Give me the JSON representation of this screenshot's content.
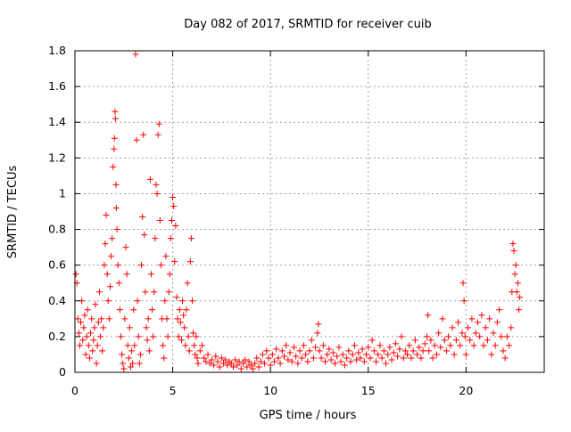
{
  "chart_data": {
    "type": "scatter",
    "title": "Day 082 of 2017, SRMTID for receiver cuib",
    "xlabel": "GPS time / hours",
    "ylabel": "SRMTID / TECUs",
    "xlim": [
      0,
      24
    ],
    "ylim": [
      0,
      1.8
    ],
    "x_ticks": [
      0,
      5,
      10,
      15,
      20
    ],
    "x_tick_labels": [
      "0",
      "5",
      "10",
      "15",
      "20"
    ],
    "y_ticks": [
      0,
      0.2,
      0.4,
      0.6,
      0.8,
      1.0,
      1.2,
      1.4,
      1.6,
      1.8
    ],
    "y_tick_labels": [
      "0",
      "0.2",
      "0.4",
      "0.6",
      "0.8",
      "1",
      "1.2",
      "1.4",
      "1.6",
      "1.8"
    ],
    "grid": true,
    "marker": "+",
    "series": [
      {
        "name": "SRMTID",
        "color": "#ff0000",
        "points": [
          [
            0.05,
            0.55
          ],
          [
            0.1,
            0.5
          ],
          [
            0.15,
            0.3
          ],
          [
            0.2,
            0.22
          ],
          [
            0.25,
            0.15
          ],
          [
            0.3,
            0.28
          ],
          [
            0.35,
            0.4
          ],
          [
            0.4,
            0.18
          ],
          [
            0.45,
            0.25
          ],
          [
            0.5,
            0.32
          ],
          [
            0.55,
            0.1
          ],
          [
            0.6,
            0.2
          ],
          [
            0.65,
            0.35
          ],
          [
            0.7,
            0.15
          ],
          [
            0.75,
            0.08
          ],
          [
            0.8,
            0.22
          ],
          [
            0.85,
            0.3
          ],
          [
            0.9,
            0.12
          ],
          [
            0.95,
            0.18
          ],
          [
            1.0,
            0.25
          ],
          [
            1.05,
            0.38
          ],
          [
            1.1,
            0.05
          ],
          [
            1.15,
            0.15
          ],
          [
            1.2,
            0.28
          ],
          [
            1.25,
            0.45
          ],
          [
            1.3,
            0.2
          ],
          [
            1.35,
            0.3
          ],
          [
            1.4,
            0.12
          ],
          [
            1.45,
            0.25
          ],
          [
            1.5,
            0.6
          ],
          [
            1.55,
            0.72
          ],
          [
            1.6,
            0.88
          ],
          [
            1.65,
            0.55
          ],
          [
            1.7,
            0.4
          ],
          [
            1.75,
            0.3
          ],
          [
            1.8,
            0.48
          ],
          [
            1.85,
            0.65
          ],
          [
            1.9,
            0.75
          ],
          [
            1.95,
            1.15
          ],
          [
            2.0,
            1.25
          ],
          [
            2.02,
            1.31
          ],
          [
            2.05,
            1.46
          ],
          [
            2.07,
            1.42
          ],
          [
            2.1,
            1.05
          ],
          [
            2.12,
            0.92
          ],
          [
            2.15,
            0.8
          ],
          [
            2.2,
            0.6
          ],
          [
            2.25,
            0.5
          ],
          [
            2.3,
            0.35
          ],
          [
            2.35,
            0.2
          ],
          [
            2.4,
            0.1
          ],
          [
            2.45,
            0.05
          ],
          [
            2.5,
            0.02
          ],
          [
            2.55,
            0.3
          ],
          [
            2.6,
            0.7
          ],
          [
            2.65,
            0.55
          ],
          [
            2.7,
            0.15
          ],
          [
            2.75,
            0.08
          ],
          [
            2.8,
            0.25
          ],
          [
            2.85,
            0.03
          ],
          [
            2.9,
            0.12
          ],
          [
            2.95,
            0.05
          ],
          [
            3.0,
            0.35
          ],
          [
            3.05,
            0.15
          ],
          [
            3.1,
            1.78
          ],
          [
            3.15,
            1.3
          ],
          [
            3.2,
            0.4
          ],
          [
            3.25,
            0.2
          ],
          [
            3.3,
            0.05
          ],
          [
            3.35,
            0.1
          ],
          [
            3.4,
            0.6
          ],
          [
            3.45,
            0.87
          ],
          [
            3.5,
            1.33
          ],
          [
            3.55,
            0.77
          ],
          [
            3.6,
            0.45
          ],
          [
            3.65,
            0.25
          ],
          [
            3.7,
            0.18
          ],
          [
            3.75,
            0.3
          ],
          [
            3.8,
            0.12
          ],
          [
            3.85,
            1.08
          ],
          [
            3.9,
            0.55
          ],
          [
            3.95,
            0.35
          ],
          [
            4.0,
            0.2
          ],
          [
            4.05,
            0.45
          ],
          [
            4.1,
            0.75
          ],
          [
            4.15,
            1.05
          ],
          [
            4.2,
            1.0
          ],
          [
            4.25,
            1.33
          ],
          [
            4.3,
            1.39
          ],
          [
            4.35,
            0.85
          ],
          [
            4.4,
            0.6
          ],
          [
            4.45,
            0.3
          ],
          [
            4.5,
            0.15
          ],
          [
            4.55,
            0.08
          ],
          [
            4.6,
            0.4
          ],
          [
            4.65,
            0.65
          ],
          [
            4.7,
            0.3
          ],
          [
            4.75,
            0.2
          ],
          [
            4.8,
            0.45
          ],
          [
            4.85,
            0.55
          ],
          [
            4.9,
            0.75
          ],
          [
            4.95,
            0.85
          ],
          [
            5.0,
            0.98
          ],
          [
            5.05,
            0.93
          ],
          [
            5.1,
            0.62
          ],
          [
            5.15,
            0.82
          ],
          [
            5.2,
            0.42
          ],
          [
            5.25,
            0.3
          ],
          [
            5.3,
            0.2
          ],
          [
            5.35,
            0.35
          ],
          [
            5.4,
            0.28
          ],
          [
            5.45,
            0.18
          ],
          [
            5.5,
            0.4
          ],
          [
            5.55,
            0.32
          ],
          [
            5.6,
            0.25
          ],
          [
            5.65,
            0.15
          ],
          [
            5.7,
            0.35
          ],
          [
            5.75,
            0.5
          ],
          [
            5.8,
            0.2
          ],
          [
            5.85,
            0.12
          ],
          [
            5.9,
            0.62
          ],
          [
            5.95,
            0.75
          ],
          [
            6.0,
            0.4
          ],
          [
            6.05,
            0.22
          ],
          [
            6.1,
            0.15
          ],
          [
            6.15,
            0.1
          ],
          [
            6.2,
            0.2
          ],
          [
            6.25,
            0.08
          ],
          [
            6.3,
            0.05
          ],
          [
            6.4,
            0.12
          ],
          [
            6.5,
            0.15
          ],
          [
            6.6,
            0.08
          ],
          [
            6.7,
            0.06
          ],
          [
            6.8,
            0.1
          ],
          [
            6.9,
            0.05
          ],
          [
            7.0,
            0.07
          ],
          [
            7.1,
            0.04
          ],
          [
            7.2,
            0.09
          ],
          [
            7.3,
            0.06
          ],
          [
            7.4,
            0.03
          ],
          [
            7.5,
            0.08
          ],
          [
            7.6,
            0.05
          ],
          [
            7.7,
            0.07
          ],
          [
            7.8,
            0.04
          ],
          [
            7.9,
            0.06
          ],
          [
            8.0,
            0.05
          ],
          [
            8.1,
            0.03
          ],
          [
            8.2,
            0.07
          ],
          [
            8.3,
            0.04
          ],
          [
            8.4,
            0.06
          ],
          [
            8.5,
            0.02
          ],
          [
            8.6,
            0.05
          ],
          [
            8.7,
            0.07
          ],
          [
            8.8,
            0.03
          ],
          [
            8.9,
            0.06
          ],
          [
            9.0,
            0.04
          ],
          [
            9.1,
            0.02
          ],
          [
            9.2,
            0.05
          ],
          [
            9.3,
            0.08
          ],
          [
            9.4,
            0.03
          ],
          [
            9.5,
            0.06
          ],
          [
            9.6,
            0.1
          ],
          [
            9.7,
            0.05
          ],
          [
            9.8,
            0.12
          ],
          [
            9.9,
            0.08
          ],
          [
            10.0,
            0.04
          ],
          [
            10.1,
            0.1
          ],
          [
            10.2,
            0.06
          ],
          [
            10.3,
            0.13
          ],
          [
            10.4,
            0.08
          ],
          [
            10.5,
            0.05
          ],
          [
            10.6,
            0.12
          ],
          [
            10.7,
            0.09
          ],
          [
            10.8,
            0.15
          ],
          [
            10.9,
            0.07
          ],
          [
            11.0,
            0.11
          ],
          [
            11.1,
            0.06
          ],
          [
            11.2,
            0.14
          ],
          [
            11.3,
            0.09
          ],
          [
            11.4,
            0.05
          ],
          [
            11.5,
            0.12
          ],
          [
            11.6,
            0.08
          ],
          [
            11.7,
            0.15
          ],
          [
            11.8,
            0.1
          ],
          [
            11.9,
            0.06
          ],
          [
            12.0,
            0.12
          ],
          [
            12.1,
            0.18
          ],
          [
            12.2,
            0.08
          ],
          [
            12.3,
            0.14
          ],
          [
            12.4,
            0.22
          ],
          [
            12.45,
            0.27
          ],
          [
            12.5,
            0.12
          ],
          [
            12.6,
            0.08
          ],
          [
            12.7,
            0.15
          ],
          [
            12.8,
            0.06
          ],
          [
            12.9,
            0.1
          ],
          [
            13.0,
            0.13
          ],
          [
            13.1,
            0.07
          ],
          [
            13.2,
            0.11
          ],
          [
            13.3,
            0.05
          ],
          [
            13.4,
            0.09
          ],
          [
            13.5,
            0.14
          ],
          [
            13.6,
            0.06
          ],
          [
            13.7,
            0.1
          ],
          [
            13.8,
            0.04
          ],
          [
            13.9,
            0.08
          ],
          [
            14.0,
            0.12
          ],
          [
            14.1,
            0.06
          ],
          [
            14.2,
            0.1
          ],
          [
            14.3,
            0.15
          ],
          [
            14.4,
            0.07
          ],
          [
            14.5,
            0.11
          ],
          [
            14.6,
            0.08
          ],
          [
            14.7,
            0.13
          ],
          [
            14.8,
            0.06
          ],
          [
            14.9,
            0.1
          ],
          [
            15.0,
            0.14
          ],
          [
            15.1,
            0.08
          ],
          [
            15.2,
            0.18
          ],
          [
            15.3,
            0.12
          ],
          [
            15.4,
            0.06
          ],
          [
            15.5,
            0.1
          ],
          [
            15.6,
            0.15
          ],
          [
            15.7,
            0.08
          ],
          [
            15.8,
            0.12
          ],
          [
            15.9,
            0.05
          ],
          [
            16.0,
            0.1
          ],
          [
            16.1,
            0.14
          ],
          [
            16.2,
            0.07
          ],
          [
            16.3,
            0.11
          ],
          [
            16.4,
            0.16
          ],
          [
            16.5,
            0.09
          ],
          [
            16.6,
            0.13
          ],
          [
            16.7,
            0.2
          ],
          [
            16.8,
            0.08
          ],
          [
            16.9,
            0.12
          ],
          [
            17.0,
            0.1
          ],
          [
            17.1,
            0.15
          ],
          [
            17.2,
            0.08
          ],
          [
            17.3,
            0.12
          ],
          [
            17.4,
            0.18
          ],
          [
            17.5,
            0.1
          ],
          [
            17.6,
            0.14
          ],
          [
            17.7,
            0.08
          ],
          [
            17.8,
            0.12
          ],
          [
            17.9,
            0.16
          ],
          [
            18.0,
            0.2
          ],
          [
            18.05,
            0.32
          ],
          [
            18.1,
            0.12
          ],
          [
            18.2,
            0.18
          ],
          [
            18.3,
            0.08
          ],
          [
            18.4,
            0.15
          ],
          [
            18.5,
            0.1
          ],
          [
            18.6,
            0.22
          ],
          [
            18.7,
            0.14
          ],
          [
            18.8,
            0.3
          ],
          [
            18.9,
            0.18
          ],
          [
            19.0,
            0.12
          ],
          [
            19.1,
            0.2
          ],
          [
            19.2,
            0.15
          ],
          [
            19.3,
            0.25
          ],
          [
            19.4,
            0.1
          ],
          [
            19.5,
            0.18
          ],
          [
            19.6,
            0.28
          ],
          [
            19.7,
            0.15
          ],
          [
            19.8,
            0.22
          ],
          [
            19.85,
            0.5
          ],
          [
            19.9,
            0.4
          ],
          [
            19.95,
            0.2
          ],
          [
            20.0,
            0.1
          ],
          [
            20.1,
            0.25
          ],
          [
            20.2,
            0.18
          ],
          [
            20.3,
            0.3
          ],
          [
            20.4,
            0.15
          ],
          [
            20.5,
            0.22
          ],
          [
            20.6,
            0.28
          ],
          [
            20.7,
            0.2
          ],
          [
            20.8,
            0.32
          ],
          [
            20.9,
            0.15
          ],
          [
            21.0,
            0.25
          ],
          [
            21.1,
            0.18
          ],
          [
            21.2,
            0.3
          ],
          [
            21.3,
            0.1
          ],
          [
            21.4,
            0.22
          ],
          [
            21.5,
            0.15
          ],
          [
            21.6,
            0.28
          ],
          [
            21.7,
            0.35
          ],
          [
            21.8,
            0.2
          ],
          [
            21.9,
            0.12
          ],
          [
            22.0,
            0.08
          ],
          [
            22.1,
            0.2
          ],
          [
            22.2,
            0.15
          ],
          [
            22.3,
            0.25
          ],
          [
            22.35,
            0.45
          ],
          [
            22.4,
            0.72
          ],
          [
            22.45,
            0.68
          ],
          [
            22.5,
            0.55
          ],
          [
            22.55,
            0.6
          ],
          [
            22.6,
            0.45
          ],
          [
            22.65,
            0.5
          ],
          [
            22.7,
            0.35
          ],
          [
            22.75,
            0.42
          ]
        ]
      }
    ]
  }
}
